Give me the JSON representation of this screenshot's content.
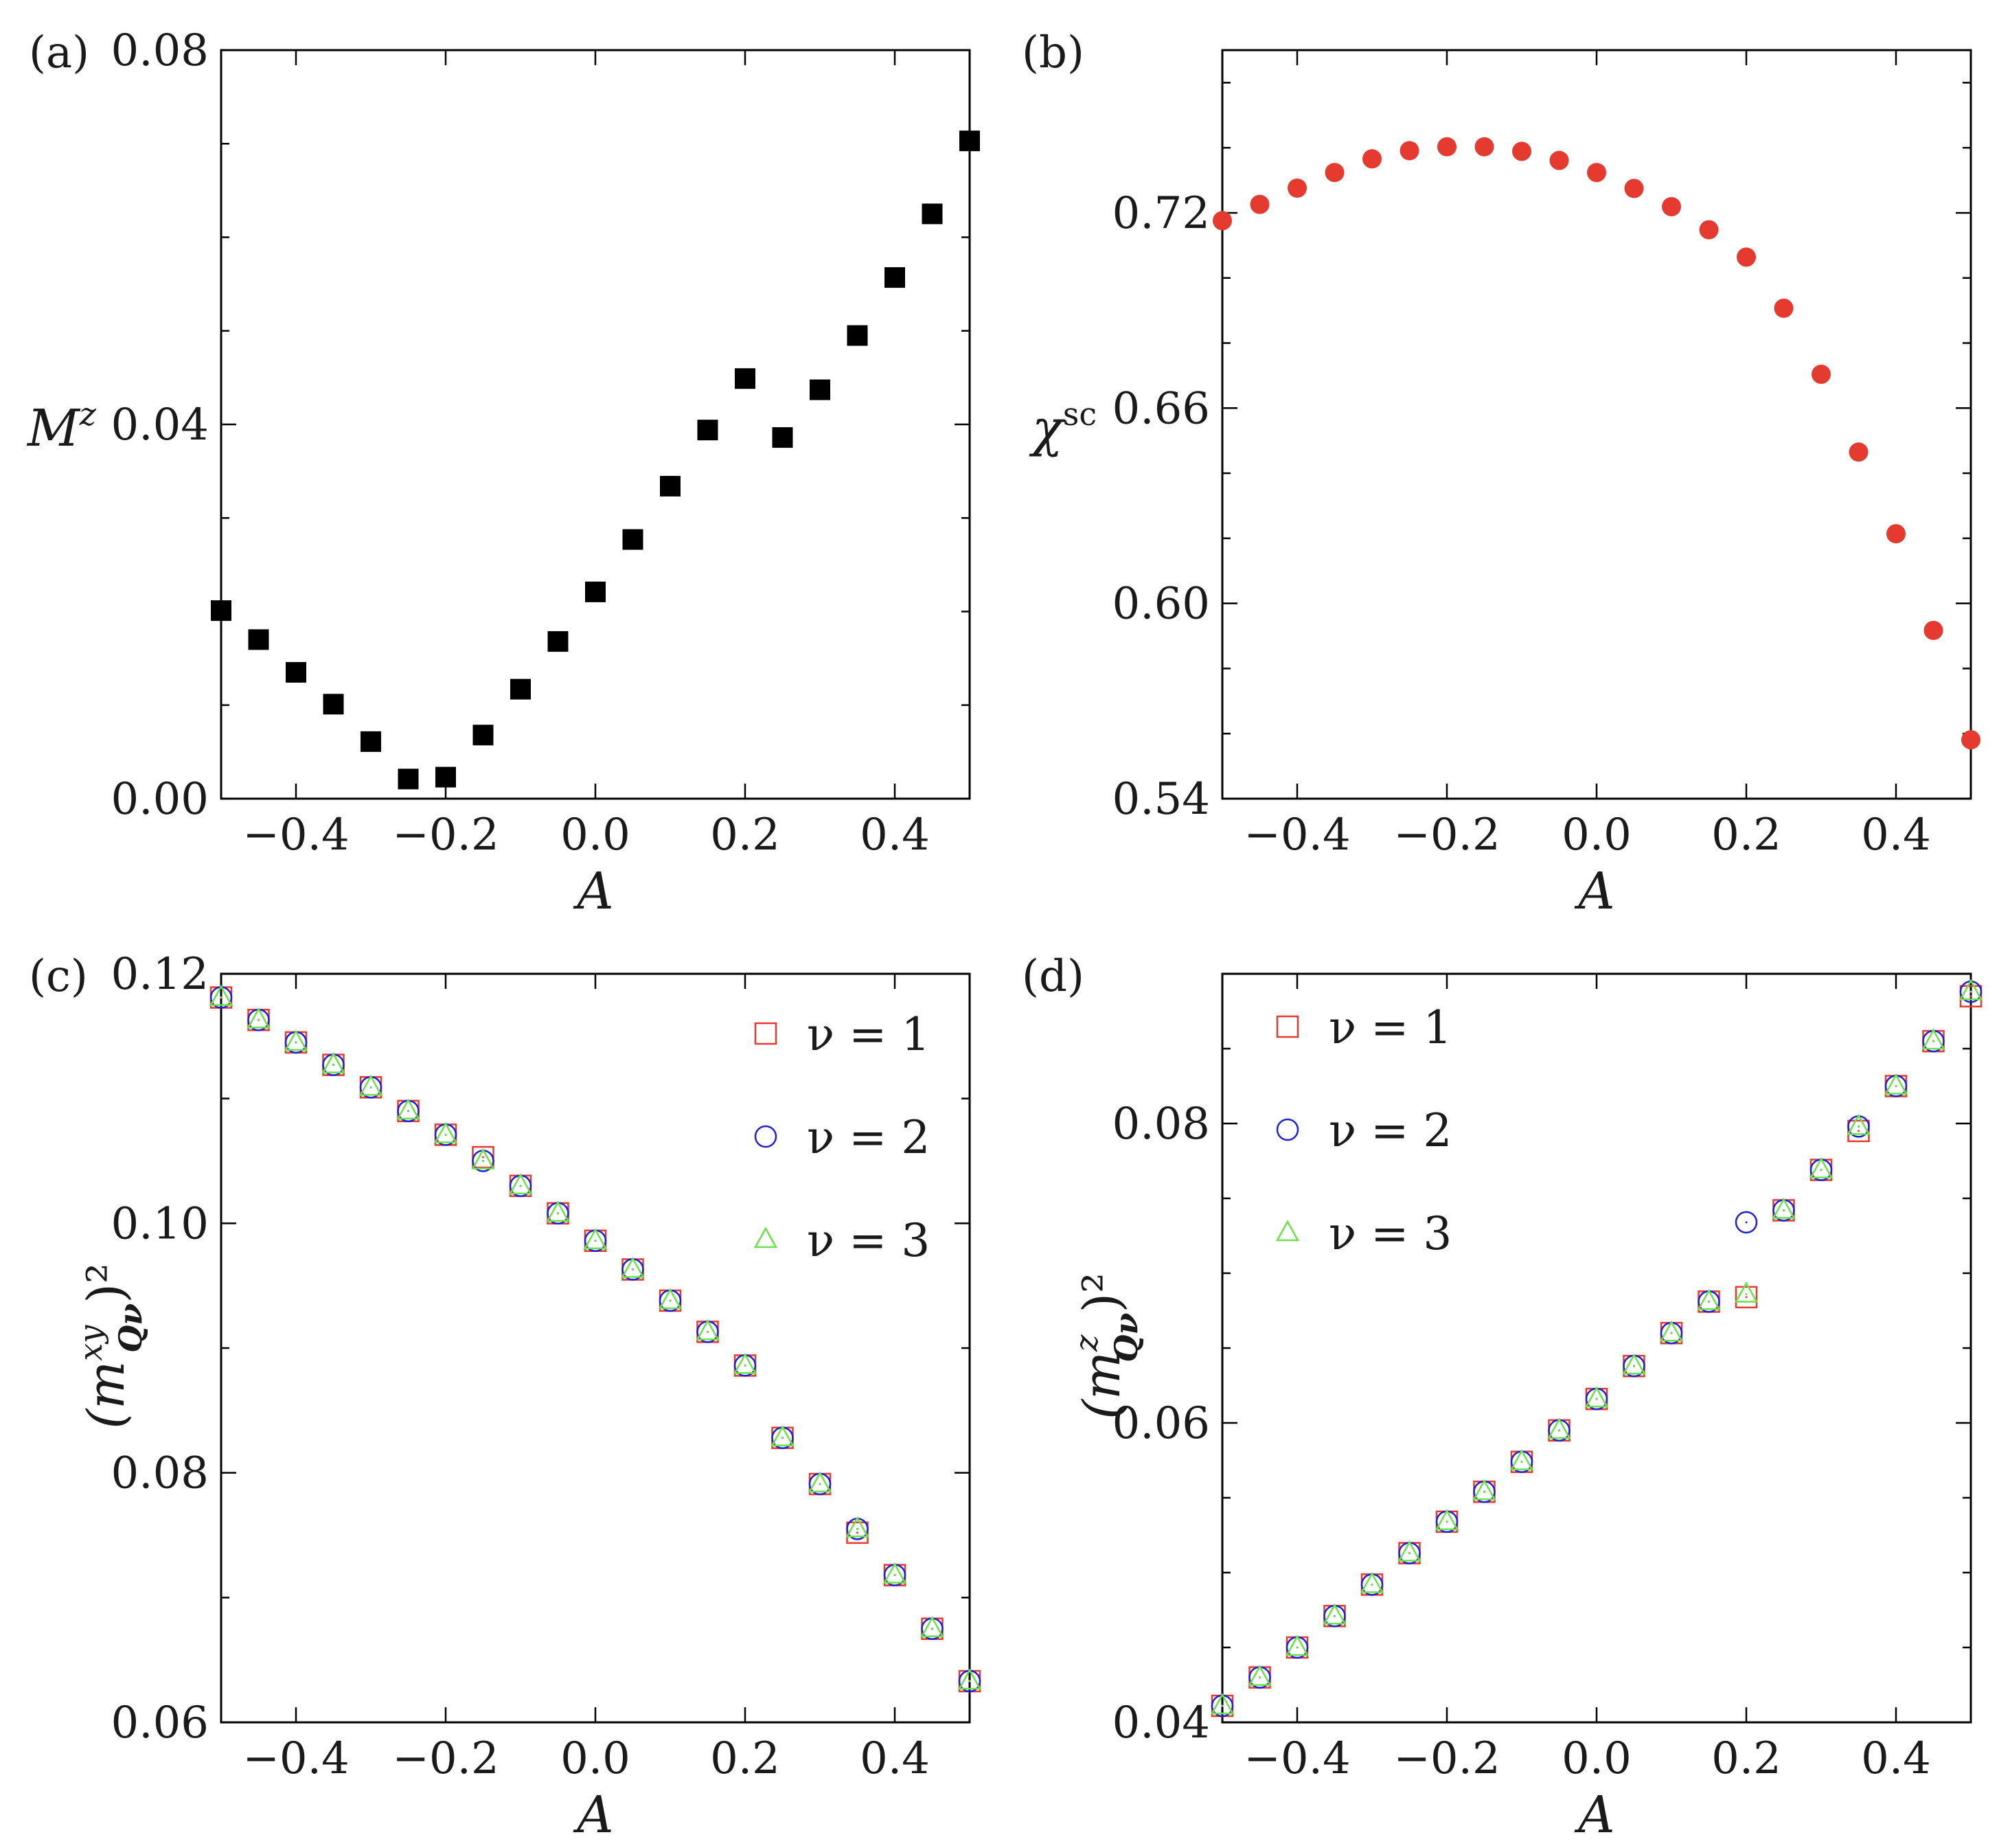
{
  "chart_data": [
    {
      "panel": "(a)",
      "type": "scatter",
      "xlabel": "A",
      "ylabel": {
        "base": "M",
        "sup": "z"
      },
      "xlim": [
        -0.5,
        0.5
      ],
      "ylim": [
        0.0,
        0.08
      ],
      "xticks": [
        -0.4,
        -0.2,
        0.0,
        0.2,
        0.4
      ],
      "xtick_labels": [
        "−0.4",
        "−0.2",
        "0.0",
        "0.2",
        "0.4"
      ],
      "yticks": [
        0.0,
        0.04,
        0.08
      ],
      "ytick_labels": [
        "0.00",
        "0.04",
        "0.08"
      ],
      "yminor": [
        0.01,
        0.02,
        0.03,
        0.05,
        0.06,
        0.07
      ],
      "series": [
        {
          "name": "M^z",
          "marker": "filled-square",
          "color": "#000000",
          "x": [
            -0.5,
            -0.45,
            -0.4,
            -0.35,
            -0.3,
            -0.25,
            -0.2,
            -0.15,
            -0.1,
            -0.05,
            0.0,
            0.05,
            0.1,
            0.15,
            0.2,
            0.25,
            0.3,
            0.35,
            0.4,
            0.45,
            0.5
          ],
          "y": [
            0.0201,
            0.017,
            0.0135,
            0.0101,
            0.0061,
            0.0021,
            0.0023,
            0.0068,
            0.0117,
            0.0168,
            0.0221,
            0.0277,
            0.0334,
            0.0394,
            0.0449,
            0.0386,
            0.0437,
            0.0495,
            0.0557,
            0.0625,
            0.0703
          ]
        }
      ]
    },
    {
      "panel": "(b)",
      "type": "scatter",
      "xlabel": "A",
      "ylabel": {
        "base": "χ",
        "sup": "sc"
      },
      "xlim": [
        -0.5,
        0.5
      ],
      "ylim": [
        0.54,
        0.77
      ],
      "xticks": [
        -0.4,
        -0.2,
        0.0,
        0.2,
        0.4
      ],
      "xtick_labels": [
        "−0.4",
        "−0.2",
        "0.0",
        "0.2",
        "0.4"
      ],
      "yticks": [
        0.54,
        0.6,
        0.66,
        0.72
      ],
      "ytick_labels": [
        "0.54",
        "0.60",
        "0.66",
        "0.72"
      ],
      "yminor": [
        0.56,
        0.58,
        0.62,
        0.64,
        0.68,
        0.7,
        0.74,
        0.76
      ],
      "series": [
        {
          "name": "χ^sc",
          "marker": "filled-circle",
          "color": "#e53a2f",
          "x": [
            -0.5,
            -0.45,
            -0.4,
            -0.35,
            -0.3,
            -0.25,
            -0.2,
            -0.15,
            -0.1,
            -0.05,
            0.0,
            0.05,
            0.1,
            0.15,
            0.2,
            0.25,
            0.3,
            0.35,
            0.4,
            0.45,
            0.5
          ],
          "y": [
            0.7176,
            0.7226,
            0.7276,
            0.7324,
            0.7366,
            0.7391,
            0.7403,
            0.7403,
            0.7389,
            0.7361,
            0.7324,
            0.7275,
            0.7219,
            0.7148,
            0.7064,
            0.6907,
            0.6704,
            0.6465,
            0.6214,
            0.5917,
            0.5581
          ]
        }
      ]
    },
    {
      "panel": "(c)",
      "type": "scatter",
      "xlabel": "A",
      "ylabel": {
        "base": "(m",
        "sup": "xy",
        "sub": "Qν",
        "tail": ")²"
      },
      "xlim": [
        -0.5,
        0.5
      ],
      "ylim": [
        0.06,
        0.12
      ],
      "xticks": [
        -0.4,
        -0.2,
        0.0,
        0.2,
        0.4
      ],
      "xtick_labels": [
        "−0.4",
        "−0.2",
        "0.0",
        "0.2",
        "0.4"
      ],
      "yticks": [
        0.06,
        0.08,
        0.1,
        0.12
      ],
      "ytick_labels": [
        "0.06",
        "0.08",
        "0.10",
        "0.12"
      ],
      "yminor": [
        0.07,
        0.09,
        0.11
      ],
      "legend": {
        "placement": "top-right",
        "entries": [
          "ν = 1",
          "ν = 2",
          "ν = 3"
        ]
      },
      "series": [
        {
          "name": "ν = 1",
          "marker": "open-square",
          "color": "#e53a2f",
          "x": [
            -0.5,
            -0.45,
            -0.4,
            -0.35,
            -0.3,
            -0.25,
            -0.2,
            -0.15,
            -0.1,
            -0.05,
            0.0,
            0.05,
            0.1,
            0.15,
            0.2,
            0.25,
            0.3,
            0.35,
            0.4,
            0.45,
            0.5
          ],
          "y": [
            0.1181,
            0.1163,
            0.1145,
            0.1127,
            0.1109,
            0.109,
            0.1071,
            0.1053,
            0.103,
            0.1008,
            0.0986,
            0.0963,
            0.0938,
            0.0913,
            0.0886,
            0.0828,
            0.0791,
            0.0752,
            0.0718,
            0.0675,
            0.0633
          ]
        },
        {
          "name": "ν = 2",
          "marker": "open-circle",
          "color": "#1f1fd6",
          "x": [
            -0.5,
            -0.45,
            -0.4,
            -0.35,
            -0.3,
            -0.25,
            -0.2,
            -0.15,
            -0.1,
            -0.05,
            0.0,
            0.05,
            0.1,
            0.15,
            0.2,
            0.25,
            0.3,
            0.35,
            0.4,
            0.45,
            0.5
          ],
          "y": [
            0.1181,
            0.1163,
            0.1145,
            0.1127,
            0.1109,
            0.109,
            0.1071,
            0.105,
            0.103,
            0.1008,
            0.0986,
            0.0963,
            0.0938,
            0.0913,
            0.0886,
            0.0828,
            0.0791,
            0.0755,
            0.0718,
            0.0675,
            0.0633
          ]
        },
        {
          "name": "ν = 3",
          "marker": "open-triangle",
          "color": "#6be04a",
          "x": [
            -0.5,
            -0.45,
            -0.4,
            -0.35,
            -0.3,
            -0.25,
            -0.2,
            -0.15,
            -0.1,
            -0.05,
            0.0,
            0.05,
            0.1,
            0.15,
            0.2,
            0.25,
            0.3,
            0.35,
            0.4,
            0.45,
            0.5
          ],
          "y": [
            0.1181,
            0.1163,
            0.1145,
            0.1127,
            0.1109,
            0.109,
            0.1071,
            0.105,
            0.103,
            0.1008,
            0.0986,
            0.0963,
            0.0938,
            0.0913,
            0.0886,
            0.0828,
            0.0791,
            0.0755,
            0.0718,
            0.0675,
            0.0633
          ]
        }
      ]
    },
    {
      "panel": "(d)",
      "type": "scatter",
      "xlabel": "A",
      "ylabel": {
        "base": "(m",
        "sup": "z",
        "sub": "Qν",
        "tail": ")²"
      },
      "xlim": [
        -0.5,
        0.5
      ],
      "ylim": [
        0.04,
        0.09
      ],
      "xticks": [
        -0.4,
        -0.2,
        0.0,
        0.2,
        0.4
      ],
      "xtick_labels": [
        "−0.4",
        "−0.2",
        "0.0",
        "0.2",
        "0.4"
      ],
      "yticks": [
        0.04,
        0.06,
        0.08
      ],
      "ytick_labels": [
        "0.04",
        "0.06",
        "0.08"
      ],
      "yminor": [
        0.045,
        0.05,
        0.055,
        0.065,
        0.07,
        0.075,
        0.085
      ],
      "legend": {
        "placement": "top-left",
        "entries": [
          "ν = 1",
          "ν = 2",
          "ν = 3"
        ]
      },
      "series": [
        {
          "name": "ν = 1",
          "marker": "open-square",
          "color": "#e53a2f",
          "x": [
            -0.5,
            -0.45,
            -0.4,
            -0.35,
            -0.3,
            -0.25,
            -0.2,
            -0.15,
            -0.1,
            -0.05,
            0.0,
            0.05,
            0.1,
            0.15,
            0.2,
            0.25,
            0.3,
            0.35,
            0.4,
            0.45,
            0.5
          ],
          "y": [
            0.0411,
            0.043,
            0.045,
            0.0471,
            0.0492,
            0.0513,
            0.0534,
            0.0554,
            0.0574,
            0.0595,
            0.0616,
            0.0638,
            0.066,
            0.0681,
            0.0684,
            0.0742,
            0.0769,
            0.0795,
            0.0825,
            0.0855,
            0.0885
          ]
        },
        {
          "name": "ν = 2",
          "marker": "open-circle",
          "color": "#1f1fd6",
          "x": [
            -0.5,
            -0.45,
            -0.4,
            -0.35,
            -0.3,
            -0.25,
            -0.2,
            -0.15,
            -0.1,
            -0.05,
            0.0,
            0.05,
            0.1,
            0.15,
            0.2,
            0.25,
            0.3,
            0.35,
            0.4,
            0.45,
            0.5
          ],
          "y": [
            0.0411,
            0.043,
            0.045,
            0.0471,
            0.0492,
            0.0513,
            0.0534,
            0.0554,
            0.0574,
            0.0595,
            0.0616,
            0.0638,
            0.066,
            0.0681,
            0.0734,
            0.0742,
            0.0769,
            0.0798,
            0.0825,
            0.0855,
            0.0888
          ]
        },
        {
          "name": "ν = 3",
          "marker": "open-triangle",
          "color": "#6be04a",
          "x": [
            -0.5,
            -0.45,
            -0.4,
            -0.35,
            -0.3,
            -0.25,
            -0.2,
            -0.15,
            -0.1,
            -0.05,
            0.0,
            0.05,
            0.1,
            0.15,
            0.2,
            0.25,
            0.3,
            0.35,
            0.4,
            0.45,
            0.5
          ],
          "y": [
            0.0411,
            0.043,
            0.045,
            0.0471,
            0.0492,
            0.0513,
            0.0534,
            0.0554,
            0.0574,
            0.0595,
            0.0616,
            0.0638,
            0.066,
            0.0681,
            0.0686,
            0.0742,
            0.0769,
            0.0798,
            0.0825,
            0.0855,
            0.0888
          ]
        }
      ]
    }
  ]
}
